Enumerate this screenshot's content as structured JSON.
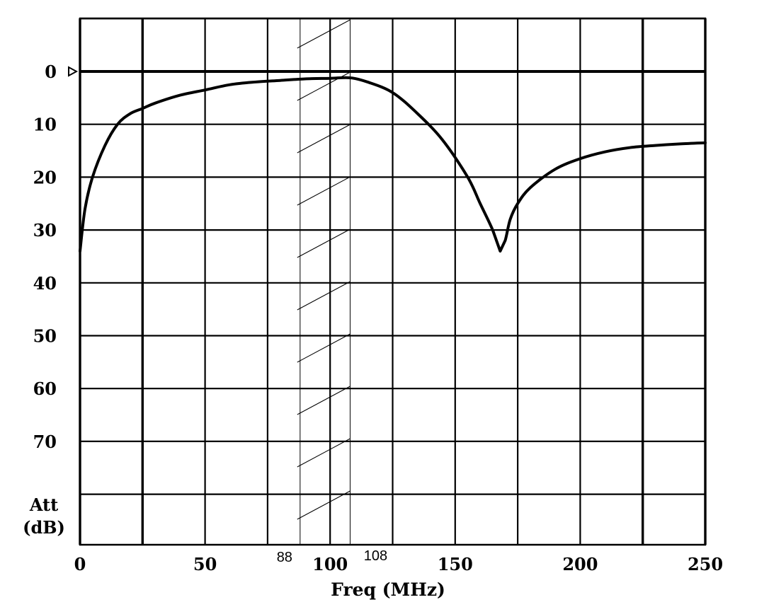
{
  "chart_data": {
    "type": "line",
    "xlabel": "Freq (MHz)",
    "ylabel_line1": "Att",
    "ylabel_line2": "(dB)",
    "xlim": [
      0,
      250
    ],
    "ylim": [
      0,
      90
    ],
    "y_inverted": true,
    "grid": true,
    "x_ticks": [
      0,
      50,
      100,
      150,
      200,
      250
    ],
    "x_ticklabels": [
      "0",
      "50",
      "100",
      "150",
      "200",
      "250"
    ],
    "x_grid": [
      0,
      25,
      50,
      75,
      100,
      125,
      150,
      175,
      200,
      225,
      250
    ],
    "x_grid_bold": [
      0,
      25,
      225,
      250
    ],
    "y_ticks": [
      0,
      10,
      20,
      30,
      40,
      50,
      60,
      70
    ],
    "y_ticklabels": [
      "0",
      "10",
      "20",
      "30",
      "40",
      "50",
      "60",
      "70"
    ],
    "y_grid": [
      -10,
      0,
      10,
      20,
      30,
      40,
      50,
      60,
      70,
      80,
      90
    ],
    "band": {
      "x_start": 88,
      "x_end": 108,
      "label_start": "88",
      "label_end": "108"
    },
    "series": [
      {
        "x": [
          0,
          2,
          5,
          10,
          15,
          20,
          25,
          30,
          40,
          50,
          60,
          70,
          80,
          90,
          100,
          108,
          115,
          125,
          135,
          145,
          155,
          160,
          165,
          168,
          170,
          172,
          175,
          180,
          190,
          200,
          210,
          220,
          230,
          240,
          250
        ],
        "y": [
          34,
          26,
          20,
          14,
          10,
          8,
          7,
          6,
          4.5,
          3.5,
          2.5,
          2,
          1.7,
          1.4,
          1.3,
          1.2,
          2,
          4,
          8,
          13,
          20,
          25,
          30,
          34,
          32,
          28,
          25,
          22,
          18.5,
          16.5,
          15.2,
          14.4,
          14,
          13.7,
          13.5
        ]
      }
    ]
  }
}
